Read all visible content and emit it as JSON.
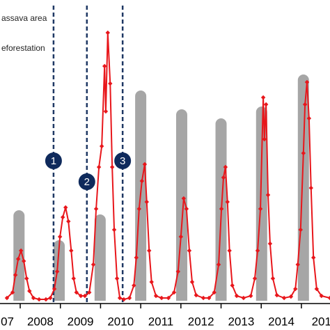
{
  "chart_data": {
    "type": "bar-line",
    "legend": [
      "assava area",
      "eforestation"
    ],
    "bars": {
      "name": "assava area",
      "color": "#a6a6a6",
      "x": [
        2007.97,
        2008.97,
        2009.99,
        2011.0,
        2012.02,
        2013.0,
        2014.01,
        2015.05
      ],
      "values": [
        130,
        87,
        124,
        302,
        275,
        262,
        279,
        325
      ]
    },
    "line": {
      "name": "eforestation",
      "color": "#e8161b",
      "x": [
        2007.67,
        2007.81,
        2007.88,
        2007.95,
        2008.02,
        2008.09,
        2008.16,
        2008.23,
        2008.33,
        2008.47,
        2008.64,
        2008.75,
        2008.85,
        2008.92,
        2008.99,
        2009.06,
        2009.13,
        2009.2,
        2009.27,
        2009.33,
        2009.4,
        2009.51,
        2009.61,
        2009.72,
        2009.82,
        2009.89,
        2009.96,
        2010.03,
        2010.1,
        2010.13,
        2010.18,
        2010.24,
        2010.29,
        2010.34,
        2010.41,
        2010.48,
        2010.58,
        2010.72,
        2010.83,
        2010.89,
        2010.96,
        2011.03,
        2011.1,
        2011.15,
        2011.21,
        2011.27,
        2011.38,
        2011.52,
        2011.69,
        2011.83,
        2011.93,
        2012.0,
        2012.07,
        2012.14,
        2012.21,
        2012.28,
        2012.38,
        2012.56,
        2012.7,
        2012.83,
        2012.94,
        2013.01,
        2013.06,
        2013.11,
        2013.16,
        2013.21,
        2013.28,
        2013.39,
        2013.56,
        2013.74,
        2013.84,
        2013.91,
        2013.98,
        2014.05,
        2014.08,
        2014.12,
        2014.17,
        2014.22,
        2014.29,
        2014.39,
        2014.57,
        2014.74,
        2014.85,
        2014.91,
        2014.98,
        2015.05,
        2015.09,
        2015.14,
        2015.19,
        2015.24,
        2015.3,
        2015.38,
        2015.5,
        2015.71
      ],
      "values": [
        4,
        12,
        37,
        60,
        72,
        57,
        32,
        14,
        4,
        2,
        2,
        4,
        17,
        42,
        92,
        120,
        134,
        114,
        72,
        32,
        12,
        7,
        7,
        12,
        52,
        132,
        192,
        222,
        337,
        272,
        385,
        312,
        192,
        102,
        32,
        4,
        2,
        4,
        22,
        62,
        132,
        172,
        196,
        142,
        72,
        27,
        7,
        4,
        4,
        12,
        42,
        92,
        147,
        132,
        72,
        27,
        8,
        4,
        4,
        12,
        52,
        132,
        177,
        192,
        142,
        72,
        22,
        7,
        4,
        7,
        32,
        72,
        132,
        292,
        232,
        282,
        152,
        82,
        32,
        8,
        4,
        6,
        17,
        52,
        102,
        212,
        282,
        314,
        262,
        162,
        62,
        17,
        7,
        4
      ]
    },
    "events": [
      {
        "x": 2008.83,
        "label": "1"
      },
      {
        "x": 2009.66,
        "label": "2"
      },
      {
        "x": 2010.55,
        "label": "3"
      }
    ],
    "xlim": [
      2007.497,
      2015.712
    ],
    "xticks": [
      2008,
      2009,
      2010,
      2011,
      2012,
      2013,
      2014,
      2015
    ],
    "x_labels": [
      {
        "value": 2007.68,
        "label": "07"
      },
      {
        "value": 2008.5,
        "label": "2008"
      },
      {
        "value": 2009.5,
        "label": "2009"
      },
      {
        "value": 2010.5,
        "label": "2010"
      },
      {
        "value": 2011.5,
        "label": "2011"
      },
      {
        "value": 2012.5,
        "label": "2012"
      },
      {
        "value": 2013.5,
        "label": "2013"
      },
      {
        "value": 2014.5,
        "label": "2014"
      },
      {
        "value": 2015.5,
        "label": "201"
      }
    ],
    "ylim": [
      0,
      430
    ]
  }
}
